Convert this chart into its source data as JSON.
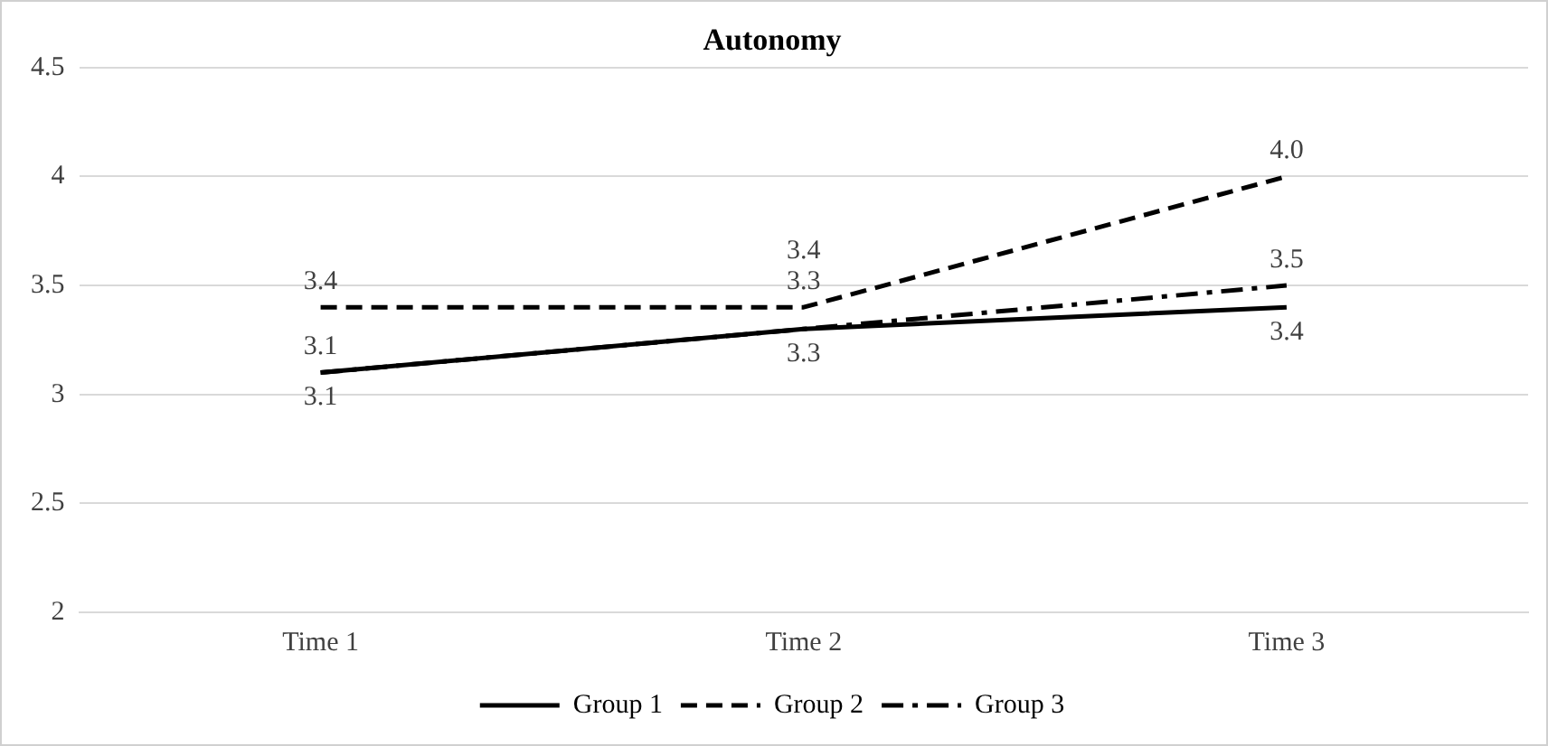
{
  "chart_data": {
    "type": "line",
    "title": "Autonomy",
    "categories": [
      "Time 1",
      "Time 2",
      "Time 3"
    ],
    "series": [
      {
        "name": "Group 1",
        "color": "#000000",
        "line_style": "solid",
        "values": [
          3.1,
          3.3,
          3.4
        ],
        "value_labels": [
          "3.1",
          "3.3",
          "3.4"
        ]
      },
      {
        "name": "Group 2",
        "color": "#000000",
        "line_style": "dashed",
        "values": [
          3.4,
          3.4,
          4.0
        ],
        "value_labels": [
          "3.4",
          "3.4",
          "4.0"
        ]
      },
      {
        "name": "Group 3",
        "color": "#000000",
        "line_style": "dashdot",
        "values": [
          3.1,
          3.3,
          3.5
        ],
        "value_labels": [
          "3.1",
          "3.3",
          "3.5"
        ]
      }
    ],
    "ylim": [
      2,
      4.5
    ],
    "yticks": [
      2,
      2.5,
      3,
      3.5,
      4,
      4.5
    ],
    "grid": "y",
    "legend": "bottom",
    "marker": "none"
  }
}
